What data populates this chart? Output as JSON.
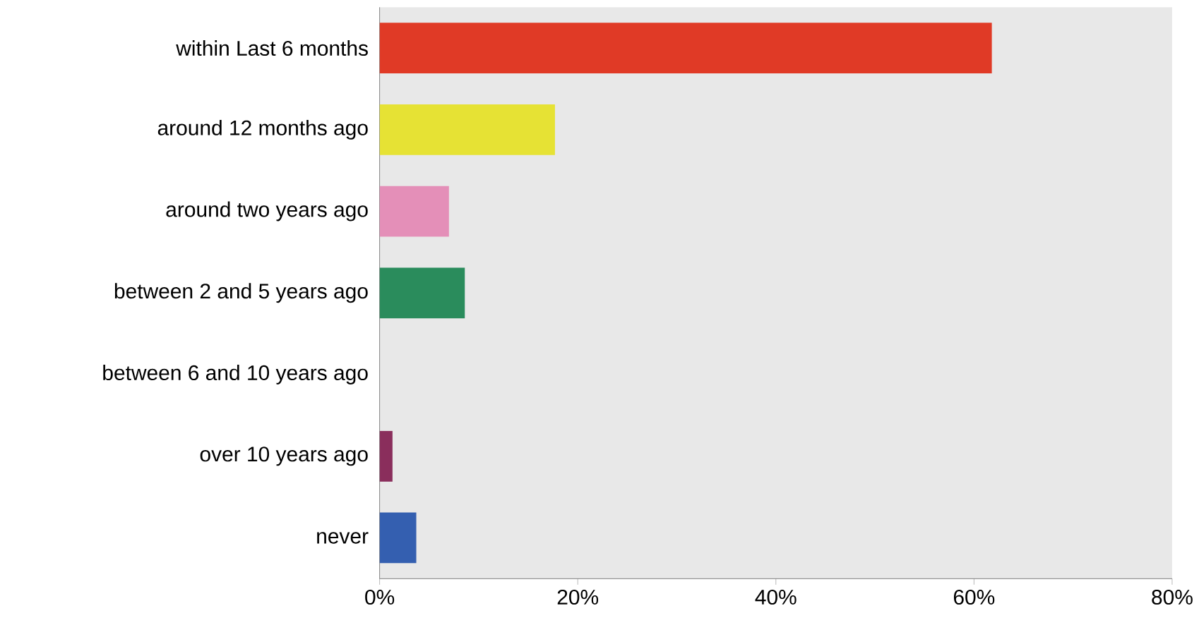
{
  "chart_data": {
    "type": "bar",
    "orientation": "horizontal",
    "categories": [
      "within Last 6 months",
      "around 12 months ago",
      "around two years ago",
      "between 2 and 5 years ago",
      "between 6 and 10 years ago",
      "over 10 years ago",
      "never"
    ],
    "values": [
      61.8,
      17.7,
      7.0,
      8.6,
      0,
      1.3,
      3.7
    ],
    "colors": [
      "#e03a26",
      "#e6e234",
      "#e48fb8",
      "#2a8c5c",
      "#7a3a50",
      "#8a2e5c",
      "#345fb0"
    ],
    "xlim": [
      0,
      80
    ],
    "xticks": [
      {
        "value": 0,
        "label": "0%"
      },
      {
        "value": 20,
        "label": "20%"
      },
      {
        "value": 40,
        "label": "40%"
      },
      {
        "value": 60,
        "label": "60%"
      },
      {
        "value": 80,
        "label": "80%"
      }
    ],
    "grid": false
  }
}
